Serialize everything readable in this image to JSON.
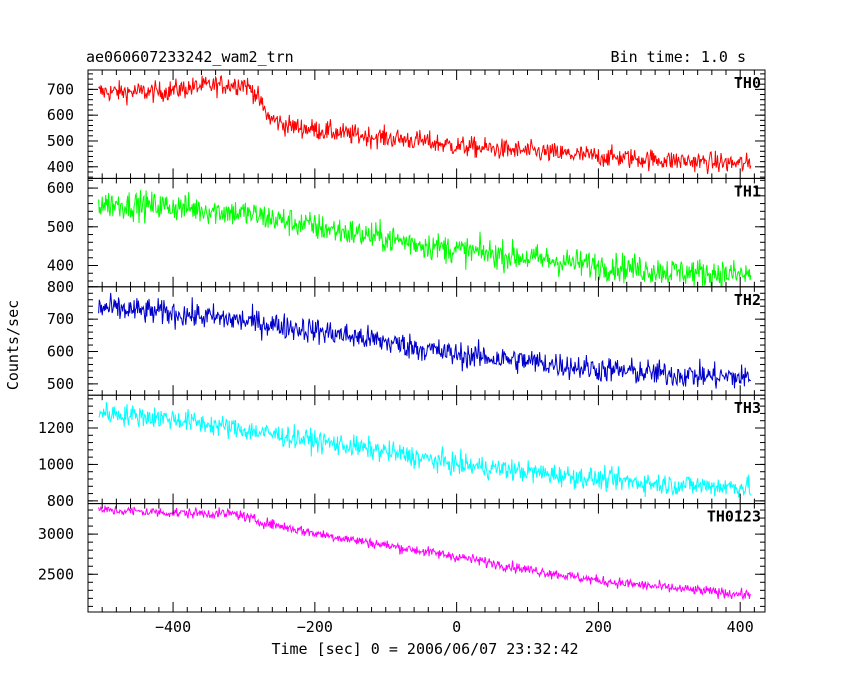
{
  "header": {
    "title": "ae060607233242_wam2_trn",
    "bin_time": "Bin time: 1.0 s"
  },
  "axes": {
    "ylabel": "Counts/sec",
    "xlabel": "Time [sec] 0 = 2006/06/07 23:32:42",
    "xlim": [
      -520,
      435
    ],
    "x_major_ticks": [
      -400,
      -200,
      0,
      200,
      400
    ]
  },
  "chart_data": {
    "type": "line",
    "title": "ae060607233242_wam2_trn",
    "xlabel": "Time [sec] 0 = 2006/06/07 23:32:42",
    "ylabel": "Counts/sec",
    "bin_time_s": 1.0,
    "x_range": [
      -505,
      415
    ],
    "panels": [
      {
        "name": "TH0",
        "color": "#ff0000",
        "ylim": [
          355,
          775
        ],
        "yticks": [
          400,
          500,
          600,
          700
        ],
        "noise": 28,
        "trend": [
          [
            -505,
            690
          ],
          [
            -420,
            690
          ],
          [
            -360,
            712
          ],
          [
            -300,
            722
          ],
          [
            -285,
            690
          ],
          [
            -265,
            590
          ],
          [
            -240,
            560
          ],
          [
            -150,
            525
          ],
          [
            -50,
            500
          ],
          [
            0,
            480
          ],
          [
            100,
            460
          ],
          [
            200,
            440
          ],
          [
            300,
            425
          ],
          [
            415,
            410
          ]
        ]
      },
      {
        "name": "TH1",
        "color": "#00ff00",
        "ylim": [
          345,
          625
        ],
        "yticks": [
          400,
          500,
          600
        ],
        "noise": 26,
        "trend": [
          [
            -505,
            560
          ],
          [
            -400,
            552
          ],
          [
            -300,
            535
          ],
          [
            -200,
            500
          ],
          [
            -100,
            470
          ],
          [
            0,
            440
          ],
          [
            100,
            420
          ],
          [
            200,
            400
          ],
          [
            300,
            385
          ],
          [
            415,
            375
          ]
        ]
      },
      {
        "name": "TH2",
        "color": "#0000cc",
        "ylim": [
          465,
          800
        ],
        "yticks": [
          500,
          600,
          700,
          800
        ],
        "noise": 28,
        "trend": [
          [
            -505,
            735
          ],
          [
            -400,
            718
          ],
          [
            -300,
            695
          ],
          [
            -200,
            665
          ],
          [
            -100,
            630
          ],
          [
            0,
            590
          ],
          [
            100,
            570
          ],
          [
            200,
            545
          ],
          [
            300,
            530
          ],
          [
            415,
            518
          ]
        ]
      },
      {
        "name": "TH3",
        "color": "#00ffff",
        "ylim": [
          785,
          1380
        ],
        "yticks": [
          800,
          1000,
          1200
        ],
        "noise": 42,
        "trend": [
          [
            -505,
            1285
          ],
          [
            -400,
            1250
          ],
          [
            -300,
            1190
          ],
          [
            -200,
            1130
          ],
          [
            -100,
            1070
          ],
          [
            0,
            1000
          ],
          [
            100,
            960
          ],
          [
            200,
            920
          ],
          [
            300,
            890
          ],
          [
            415,
            875
          ]
        ]
      },
      {
        "name": "TH0123",
        "color": "#ff00ff",
        "ylim": [
          2030,
          3380
        ],
        "yticks": [
          2500,
          3000
        ],
        "noise": 45,
        "trend": [
          [
            -505,
            3300
          ],
          [
            -400,
            3265
          ],
          [
            -310,
            3250
          ],
          [
            -280,
            3160
          ],
          [
            -200,
            3010
          ],
          [
            -100,
            2860
          ],
          [
            0,
            2720
          ],
          [
            100,
            2560
          ],
          [
            200,
            2420
          ],
          [
            300,
            2330
          ],
          [
            415,
            2240
          ]
        ]
      }
    ]
  }
}
